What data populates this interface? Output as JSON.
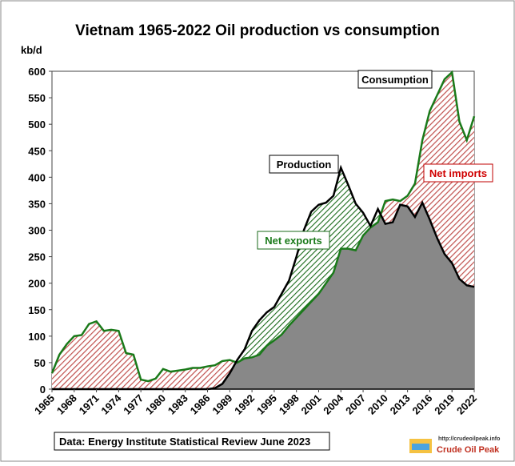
{
  "chart_data": {
    "type": "area-line",
    "title": "Vietnam  1965-2022 Oil production  vs consumption",
    "ylabel": "kb/d",
    "x": [
      1965,
      1966,
      1967,
      1968,
      1969,
      1970,
      1971,
      1972,
      1973,
      1974,
      1975,
      1976,
      1977,
      1978,
      1979,
      1980,
      1981,
      1982,
      1983,
      1984,
      1985,
      1986,
      1987,
      1988,
      1989,
      1990,
      1991,
      1992,
      1993,
      1994,
      1995,
      1996,
      1997,
      1998,
      1999,
      2000,
      2001,
      2002,
      2003,
      2004,
      2005,
      2006,
      2007,
      2008,
      2009,
      2010,
      2011,
      2012,
      2013,
      2014,
      2015,
      2016,
      2017,
      2018,
      2019,
      2020,
      2021,
      2022
    ],
    "series": [
      {
        "name": "Consumption",
        "color": "#1a7a1a",
        "values": [
          30,
          65,
          85,
          100,
          102,
          123,
          128,
          110,
          112,
          110,
          68,
          65,
          18,
          15,
          20,
          38,
          33,
          35,
          37,
          40,
          40,
          43,
          45,
          53,
          55,
          50,
          58,
          60,
          65,
          82,
          92,
          103,
          120,
          135,
          150,
          165,
          180,
          200,
          220,
          265,
          265,
          262,
          290,
          305,
          315,
          355,
          358,
          355,
          365,
          388,
          470,
          525,
          555,
          585,
          598,
          505,
          470,
          515
        ]
      },
      {
        "name": "Production",
        "color": "#000000",
        "values": [
          0,
          0,
          0,
          0,
          0,
          0,
          0,
          0,
          0,
          0,
          0,
          0,
          0,
          0,
          0,
          0,
          0,
          0,
          0,
          0,
          0,
          0,
          2,
          10,
          30,
          55,
          75,
          110,
          130,
          145,
          155,
          180,
          205,
          250,
          300,
          335,
          348,
          352,
          365,
          418,
          385,
          350,
          333,
          308,
          340,
          312,
          315,
          348,
          345,
          325,
          352,
          320,
          285,
          255,
          238,
          208,
          196,
          193
        ]
      }
    ],
    "annotations": [
      "Net exports",
      "Net imports"
    ],
    "source": "Data: Energy Institute Statistical Review June 2023",
    "logo_url": "http://crudeoilpeak.info",
    "logo_name": "Crude Oil Peak",
    "xlim": [
      1965,
      2022
    ],
    "xticks": [
      1965,
      1968,
      1971,
      1974,
      1977,
      1980,
      1983,
      1986,
      1989,
      1992,
      1995,
      1998,
      2001,
      2004,
      2007,
      2010,
      2013,
      2016,
      2019,
      2022
    ],
    "ylim": [
      0,
      600
    ],
    "yticks": [
      0,
      50,
      100,
      150,
      200,
      250,
      300,
      350,
      400,
      450,
      500,
      550,
      600
    ]
  }
}
